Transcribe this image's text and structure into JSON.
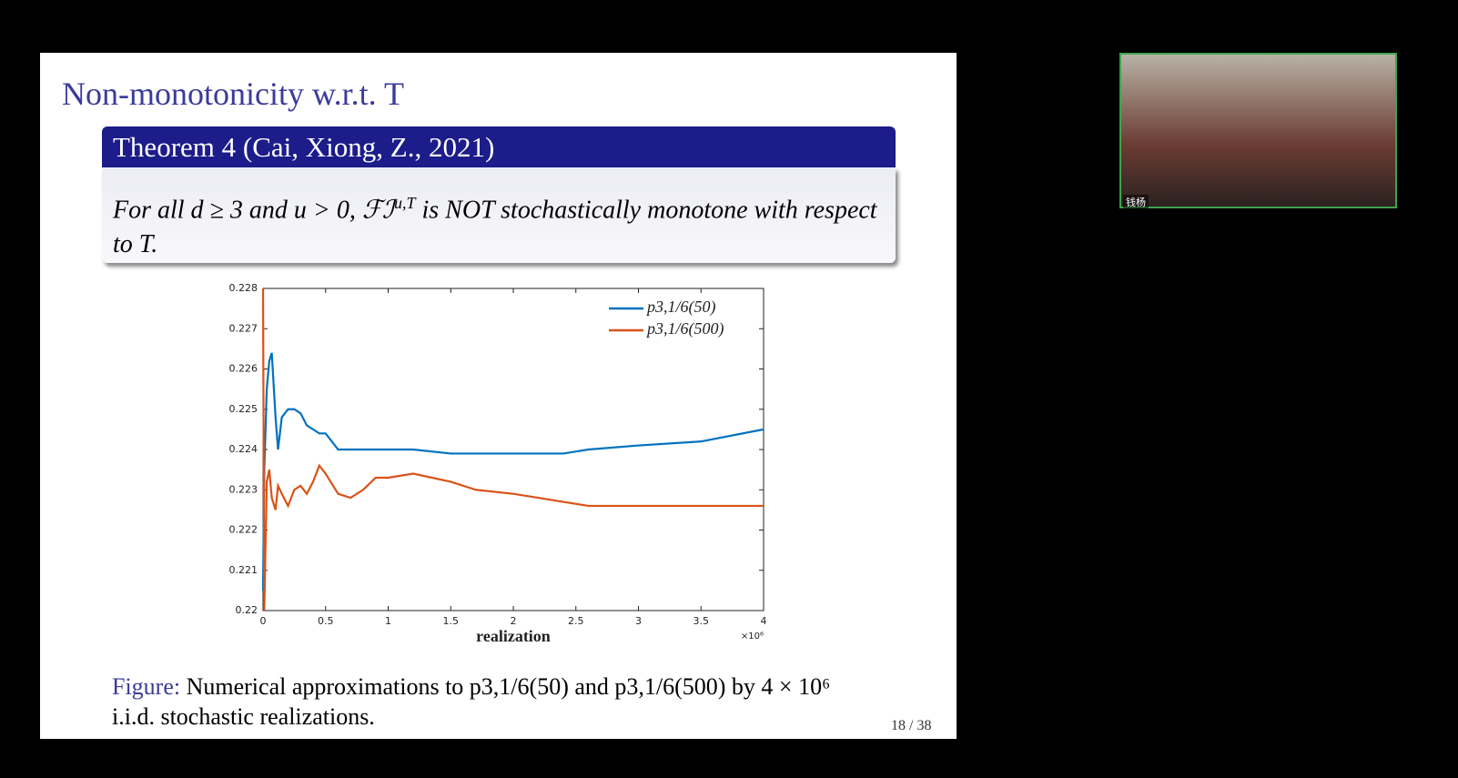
{
  "slide": {
    "title": "Non-monotonicity w.r.t. T",
    "theorem": {
      "header": "Theorem 4 (Cai, Xiong, Z., 2021)",
      "body": [
        "For all d ≥ 3 and u > 0, ℱℐ",
        "u,T",
        " is NOT stochastically monotone with respect to T."
      ]
    },
    "caption": {
      "label": "Figure:",
      "text": "Numerical approximations to p3,1/6(50) and p3,1/6(500) by 4 × 10⁶ i.i.d. stochastic realizations."
    },
    "page_number": "18 / 38"
  },
  "webcam": {
    "name": "钱杨"
  },
  "chart_data": {
    "type": "line",
    "x_label": "realization",
    "x_multiplier": "×10⁶",
    "x": [
      0,
      0.01,
      0.03,
      0.05,
      0.07,
      0.1,
      0.12,
      0.15,
      0.2,
      0.25,
      0.3,
      0.35,
      0.4,
      0.45,
      0.5,
      0.6,
      0.7,
      0.8,
      0.9,
      1,
      1.2,
      1.5,
      1.7,
      2,
      2.2,
      2.4,
      2.6,
      3,
      3.5,
      4
    ],
    "series": [
      {
        "name": "p3,1/6(50)",
        "color": "#0072bd",
        "values": [
          0.2205,
          0.2235,
          0.2255,
          0.2262,
          0.2264,
          0.2248,
          0.224,
          0.2248,
          0.225,
          0.225,
          0.2249,
          0.2246,
          0.2245,
          0.2244,
          0.2244,
          0.224,
          0.224,
          0.224,
          0.224,
          0.224,
          0.224,
          0.2239,
          0.2239,
          0.2239,
          0.2239,
          0.2239,
          0.224,
          0.2241,
          0.2242,
          0.2245
        ]
      },
      {
        "name": "p3,1/6(500)",
        "color": "#d95319",
        "values": [
          0.228,
          0.22,
          0.2232,
          0.2235,
          0.2228,
          0.2225,
          0.2231,
          0.2229,
          0.2226,
          0.223,
          0.2231,
          0.2229,
          0.2232,
          0.2236,
          0.2234,
          0.2229,
          0.2228,
          0.223,
          0.2233,
          0.2233,
          0.2234,
          0.2232,
          0.223,
          0.2229,
          0.2228,
          0.2227,
          0.2226,
          0.2226,
          0.2226,
          0.2226
        ]
      }
    ],
    "xlim": [
      0,
      4
    ],
    "xticks": [
      0,
      0.5,
      1,
      1.5,
      2,
      2.5,
      3,
      3.5,
      4
    ],
    "ylim": [
      0.22,
      0.228
    ],
    "yticks": [
      0.22,
      0.221,
      0.222,
      0.223,
      0.224,
      0.225,
      0.226,
      0.227,
      0.228
    ],
    "legend": "upper right"
  }
}
